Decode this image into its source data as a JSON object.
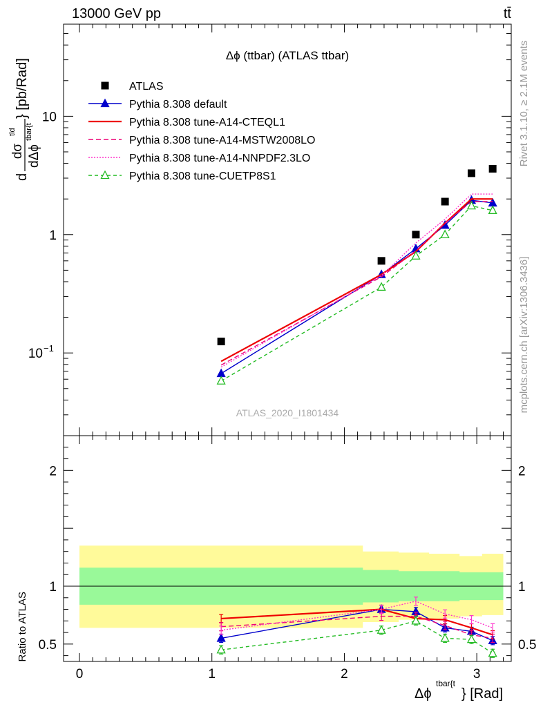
{
  "header": {
    "energy_label": "13000 GeV pp",
    "process_label": "tt̄"
  },
  "side_labels": {
    "rivet": "Rivet 3.1.10, ≥ 2.1M events",
    "mcplots": "mcplots.cern.ch [arXiv:1306.3436]"
  },
  "chart_data": {
    "type": "line",
    "title": "Δϕ (ttbar) (ATLAS ttbar)",
    "watermark": "ATLAS_2020_I1801434",
    "xlabel_main": "Δϕ",
    "xlabel_sup": "tbar{t",
    "xlabel_tail": "} [Rad]",
    "ylabel_main": {
      "prefix": "d",
      "num": "dσ",
      "num_sup": "tld",
      "den": "dΔϕ",
      "den_sup": "tbar{t",
      "suffix": "} [pb/Rad]"
    },
    "ylabel_ratio": "Ratio to ATLAS",
    "xlim": [
      -0.12,
      3.26
    ],
    "ylim_main": [
      0.02,
      60
    ],
    "yscale_main": "log",
    "ylim_ratio": [
      0.35,
      2.3
    ],
    "x_ticks": [
      0,
      1,
      2,
      3
    ],
    "x_tick_labels": [
      "0",
      "1",
      "2",
      "3"
    ],
    "y_ticks_main": [
      0.1,
      1,
      10
    ],
    "y_tick_labels_main": [
      {
        "base": "10",
        "sup": "−1"
      },
      {
        "base": "1",
        "sup": ""
      },
      {
        "base": "10",
        "sup": ""
      }
    ],
    "y_ticks_ratio": [
      0.5,
      1,
      2
    ],
    "y_tick_labels_ratio": [
      "0.5",
      "1",
      "2"
    ],
    "x": [
      1.07,
      2.28,
      2.54,
      2.76,
      2.96,
      3.12
    ],
    "bin_edges": [
      0.0,
      2.14,
      2.41,
      2.64,
      2.87,
      3.04,
      3.2
    ],
    "atlas": {
      "name": "ATLAS",
      "color": "#000000",
      "values": [
        0.125,
        0.6,
        1.0,
        1.9,
        3.3,
        3.6
      ]
    },
    "band_inner": [
      [
        0.84,
        1.16
      ],
      [
        0.86,
        1.14
      ],
      [
        0.87,
        1.13
      ],
      [
        0.87,
        1.13
      ],
      [
        0.88,
        1.12
      ],
      [
        0.88,
        1.12
      ]
    ],
    "band_outer": [
      [
        0.64,
        1.35
      ],
      [
        0.69,
        1.3
      ],
      [
        0.71,
        1.29
      ],
      [
        0.72,
        1.28
      ],
      [
        0.74,
        1.26
      ],
      [
        0.75,
        1.28
      ]
    ],
    "band_inner_color": "#99f999",
    "band_outer_color": "#fffa9a",
    "series": [
      {
        "name": "Pythia 8.308 default",
        "color": "#0000cc",
        "dash": "",
        "marker": "triangle-filled",
        "values": [
          0.067,
          0.46,
          0.76,
          1.2,
          1.95,
          1.85
        ],
        "ratio": [
          0.55,
          0.8,
          0.78,
          0.64,
          0.61,
          0.53
        ]
      },
      {
        "name": "Pythia 8.308 tune-A14-CTEQL1",
        "color": "#ee0000",
        "dash": "",
        "marker": "none",
        "values": [
          0.085,
          0.46,
          0.72,
          1.25,
          2.0,
          2.0
        ],
        "ratio": [
          0.72,
          0.8,
          0.72,
          0.71,
          0.64,
          0.58
        ]
      },
      {
        "name": "Pythia 8.308 tune-A14-MSTW2008LO",
        "color": "#ee0077",
        "dash": "7,4",
        "marker": "none",
        "values": [
          0.079,
          0.44,
          0.73,
          1.25,
          1.9,
          1.9
        ],
        "ratio": [
          0.65,
          0.74,
          0.74,
          0.66,
          0.58,
          0.55
        ]
      },
      {
        "name": "Pythia 8.308 tune-A14-NNPDF2.3LO",
        "color": "#ff33cc",
        "dash": "2,2",
        "marker": "none",
        "values": [
          0.076,
          0.45,
          0.85,
          1.35,
          2.2,
          2.2
        ],
        "ratio": [
          0.62,
          0.8,
          0.87,
          0.76,
          0.71,
          0.64
        ]
      },
      {
        "name": "Pythia 8.308 tune-CUETP8S1",
        "color": "#22bb22",
        "dash": "5,4",
        "marker": "triangle-open",
        "values": [
          0.058,
          0.36,
          0.66,
          1.0,
          1.75,
          1.6
        ],
        "ratio": [
          0.45,
          0.62,
          0.7,
          0.55,
          0.54,
          0.42
        ]
      }
    ]
  }
}
